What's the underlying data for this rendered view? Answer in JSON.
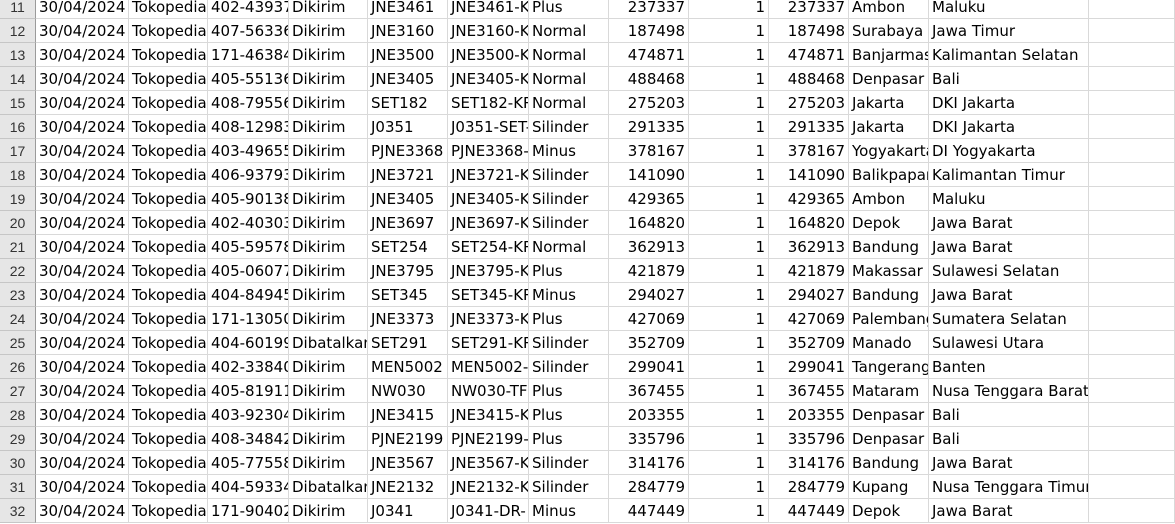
{
  "sheet": {
    "rows": [
      {
        "row": "11",
        "cells": [
          "30/04/2024",
          "Tokopedia",
          "402-43937",
          "Dikirim",
          "JNE3461",
          "JNE3461-K",
          "Plus",
          "237337",
          "1",
          "237337",
          "Ambon",
          "Maluku"
        ]
      },
      {
        "row": "12",
        "cells": [
          "30/04/2024",
          "Tokopedia",
          "407-56336",
          "Dikirim",
          "JNE3160",
          "JNE3160-K",
          "Normal",
          "187498",
          "1",
          "187498",
          "Surabaya",
          "Jawa Timur"
        ]
      },
      {
        "row": "13",
        "cells": [
          "30/04/2024",
          "Tokopedia",
          "171-46384",
          "Dikirim",
          "JNE3500",
          "JNE3500-K",
          "Normal",
          "474871",
          "1",
          "474871",
          "Banjarmasin",
          "Kalimantan Selatan"
        ]
      },
      {
        "row": "14",
        "cells": [
          "30/04/2024",
          "Tokopedia",
          "405-55136",
          "Dikirim",
          "JNE3405",
          "JNE3405-K",
          "Normal",
          "488468",
          "1",
          "488468",
          "Denpasar",
          "Bali"
        ]
      },
      {
        "row": "15",
        "cells": [
          "30/04/2024",
          "Tokopedia",
          "408-79556",
          "Dikirim",
          "SET182",
          "SET182-KR",
          "Normal",
          "275203",
          "1",
          "275203",
          "Jakarta",
          "DKI Jakarta"
        ]
      },
      {
        "row": "16",
        "cells": [
          "30/04/2024",
          "Tokopedia",
          "408-12983",
          "Dikirim",
          "J0351",
          "J0351-SET-",
          "Silinder",
          "291335",
          "1",
          "291335",
          "Jakarta",
          "DKI Jakarta"
        ]
      },
      {
        "row": "17",
        "cells": [
          "30/04/2024",
          "Tokopedia",
          "403-49655",
          "Dikirim",
          "PJNE3368",
          "PJNE3368-",
          "Minus",
          "378167",
          "1",
          "378167",
          "Yogyakarta",
          "DI Yogyakarta"
        ]
      },
      {
        "row": "18",
        "cells": [
          "30/04/2024",
          "Tokopedia",
          "406-93793",
          "Dikirim",
          "JNE3721",
          "JNE3721-K",
          "Silinder",
          "141090",
          "1",
          "141090",
          "Balikpapan",
          "Kalimantan Timur"
        ]
      },
      {
        "row": "19",
        "cells": [
          "30/04/2024",
          "Tokopedia",
          "405-90138",
          "Dikirim",
          "JNE3405",
          "JNE3405-K",
          "Silinder",
          "429365",
          "1",
          "429365",
          "Ambon",
          "Maluku"
        ]
      },
      {
        "row": "20",
        "cells": [
          "30/04/2024",
          "Tokopedia",
          "402-40303",
          "Dikirim",
          "JNE3697",
          "JNE3697-K",
          "Silinder",
          "164820",
          "1",
          "164820",
          "Depok",
          "Jawa Barat"
        ]
      },
      {
        "row": "21",
        "cells": [
          "30/04/2024",
          "Tokopedia",
          "405-59578",
          "Dikirim",
          "SET254",
          "SET254-KR",
          "Normal",
          "362913",
          "1",
          "362913",
          "Bandung",
          "Jawa Barat"
        ]
      },
      {
        "row": "22",
        "cells": [
          "30/04/2024",
          "Tokopedia",
          "405-06077",
          "Dikirim",
          "JNE3795",
          "JNE3795-K",
          "Plus",
          "421879",
          "1",
          "421879",
          "Makassar",
          "Sulawesi Selatan"
        ]
      },
      {
        "row": "23",
        "cells": [
          "30/04/2024",
          "Tokopedia",
          "404-84945",
          "Dikirim",
          "SET345",
          "SET345-KR",
          "Minus",
          "294027",
          "1",
          "294027",
          "Bandung",
          "Jawa Barat"
        ]
      },
      {
        "row": "24",
        "cells": [
          "30/04/2024",
          "Tokopedia",
          "171-13050",
          "Dikirim",
          "JNE3373",
          "JNE3373-K",
          "Plus",
          "427069",
          "1",
          "427069",
          "Palembang",
          "Sumatera Selatan"
        ]
      },
      {
        "row": "25",
        "cells": [
          "30/04/2024",
          "Tokopedia",
          "404-60199",
          "Dibatalkan",
          "SET291",
          "SET291-KR",
          "Silinder",
          "352709",
          "1",
          "352709",
          "Manado",
          "Sulawesi Utara"
        ]
      },
      {
        "row": "26",
        "cells": [
          "30/04/2024",
          "Tokopedia",
          "402-33840",
          "Dikirim",
          "MEN5002",
          "MEN5002-",
          "Silinder",
          "299041",
          "1",
          "299041",
          "Tangerang",
          "Banten"
        ]
      },
      {
        "row": "27",
        "cells": [
          "30/04/2024",
          "Tokopedia",
          "405-81911",
          "Dikirim",
          "NW030",
          "NW030-TF",
          "Plus",
          "367455",
          "1",
          "367455",
          "Mataram",
          "Nusa Tenggara Barat"
        ]
      },
      {
        "row": "28",
        "cells": [
          "30/04/2024",
          "Tokopedia",
          "403-92304",
          "Dikirim",
          "JNE3415",
          "JNE3415-K",
          "Plus",
          "203355",
          "1",
          "203355",
          "Denpasar",
          "Bali"
        ]
      },
      {
        "row": "29",
        "cells": [
          "30/04/2024",
          "Tokopedia",
          "408-34842",
          "Dikirim",
          "PJNE2199",
          "PJNE2199-",
          "Plus",
          "335796",
          "1",
          "335796",
          "Denpasar",
          "Bali"
        ]
      },
      {
        "row": "30",
        "cells": [
          "30/04/2024",
          "Tokopedia",
          "405-77558",
          "Dikirim",
          "JNE3567",
          "JNE3567-K",
          "Silinder",
          "314176",
          "1",
          "314176",
          "Bandung",
          "Jawa Barat"
        ]
      },
      {
        "row": "31",
        "cells": [
          "30/04/2024",
          "Tokopedia",
          "404-59334",
          "Dibatalkan",
          "JNE2132",
          "JNE2132-K",
          "Silinder",
          "284779",
          "1",
          "284779",
          "Kupang",
          "Nusa Tenggara Timur"
        ]
      },
      {
        "row": "32",
        "cells": [
          "30/04/2024",
          "Tokopedia",
          "171-90402",
          "Dikirim",
          "J0341",
          "J0341-DR-",
          "Minus",
          "447449",
          "1",
          "447449",
          "Depok",
          "Jawa Barat"
        ]
      }
    ]
  }
}
